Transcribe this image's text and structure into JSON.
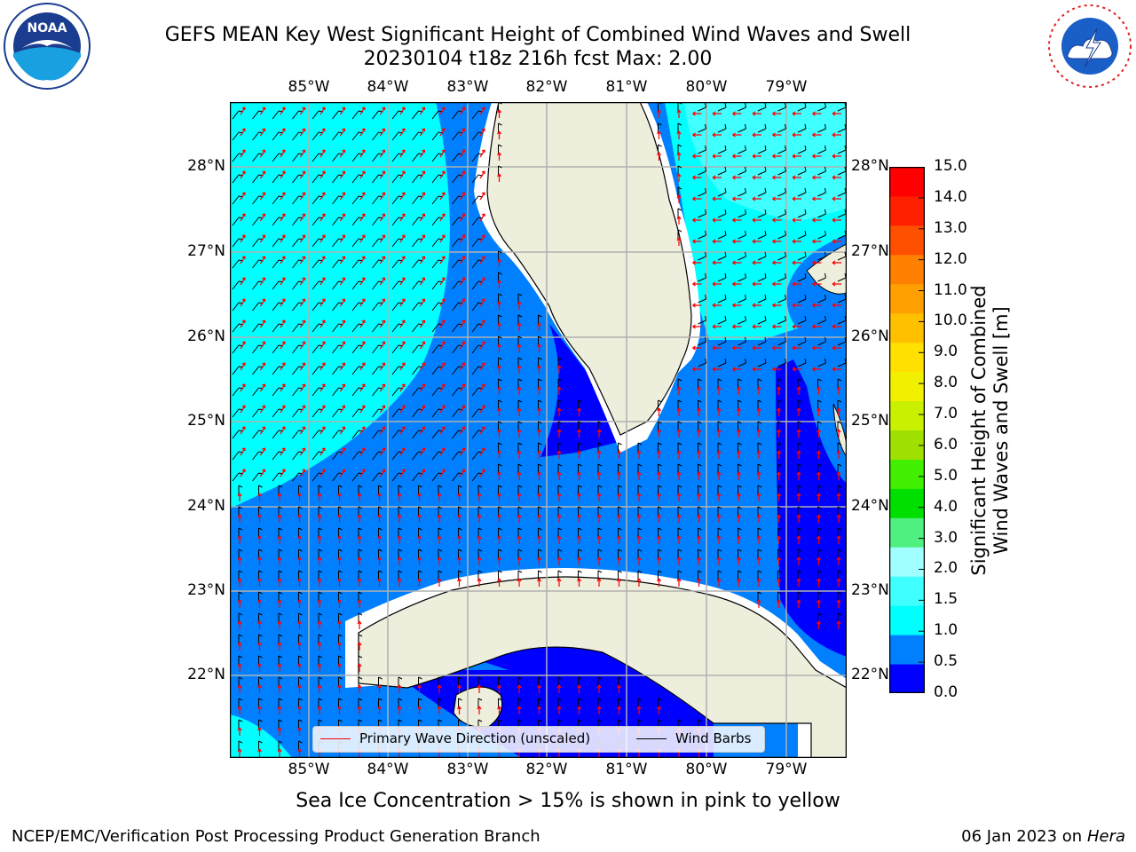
{
  "title": {
    "line1": "GEFS MEAN Key West Significant Height of Combined Wind Waves and Swell",
    "line2": "20230104 t18z 216h fcst   Max: 2.00"
  },
  "map": {
    "lon_labels": [
      "85°W",
      "84°W",
      "83°W",
      "82°W",
      "81°W",
      "80°W",
      "79°W"
    ],
    "lat_labels": [
      "28°N",
      "27°N",
      "26°N",
      "25°N",
      "24°N",
      "23°N",
      "22°N"
    ],
    "extent": {
      "lon": [
        -86.0,
        -78.25
      ],
      "lat": [
        21.0,
        28.75
      ]
    }
  },
  "colorbar": {
    "label_line1": "Significant Height of Combined",
    "label_line2": "Wind Waves and Swell [m]",
    "ticks": [
      "15.0",
      "14.0",
      "13.0",
      "12.0",
      "11.0",
      "10.0",
      "9.0",
      "8.0",
      "7.0",
      "6.0",
      "5.0",
      "4.0",
      "3.0",
      "2.0",
      "1.5",
      "1.0",
      "0.5",
      "0.0"
    ],
    "colors": [
      "#0000ff",
      "#0080ff",
      "#00ffff",
      "#40ffff",
      "#a0ffff",
      "#50f080",
      "#00e000",
      "#40f000",
      "#a0e000",
      "#c8f000",
      "#f0f000",
      "#ffe000",
      "#ffc000",
      "#ffa000",
      "#ff8000",
      "#ff5000",
      "#ff2000",
      "#ff0000"
    ]
  },
  "legend": {
    "wave_direction": "Primary Wave Direction (unscaled)",
    "wind_barbs": "Wind Barbs",
    "wave_color": "#ff0000",
    "barb_color": "#000000"
  },
  "sea_ice_note": "Sea Ice Concentration > 15% is shown in pink to yellow",
  "footer": {
    "left": "NCEP/EMC/Verification Post Processing Product Generation Branch",
    "date": "06 Jan 2023 on ",
    "host": "Hera"
  },
  "logos": {
    "left": "noaa-logo",
    "right": "nws-logo"
  },
  "colors": {
    "land": "#eeeedd",
    "grid": "#b0b0b0"
  }
}
